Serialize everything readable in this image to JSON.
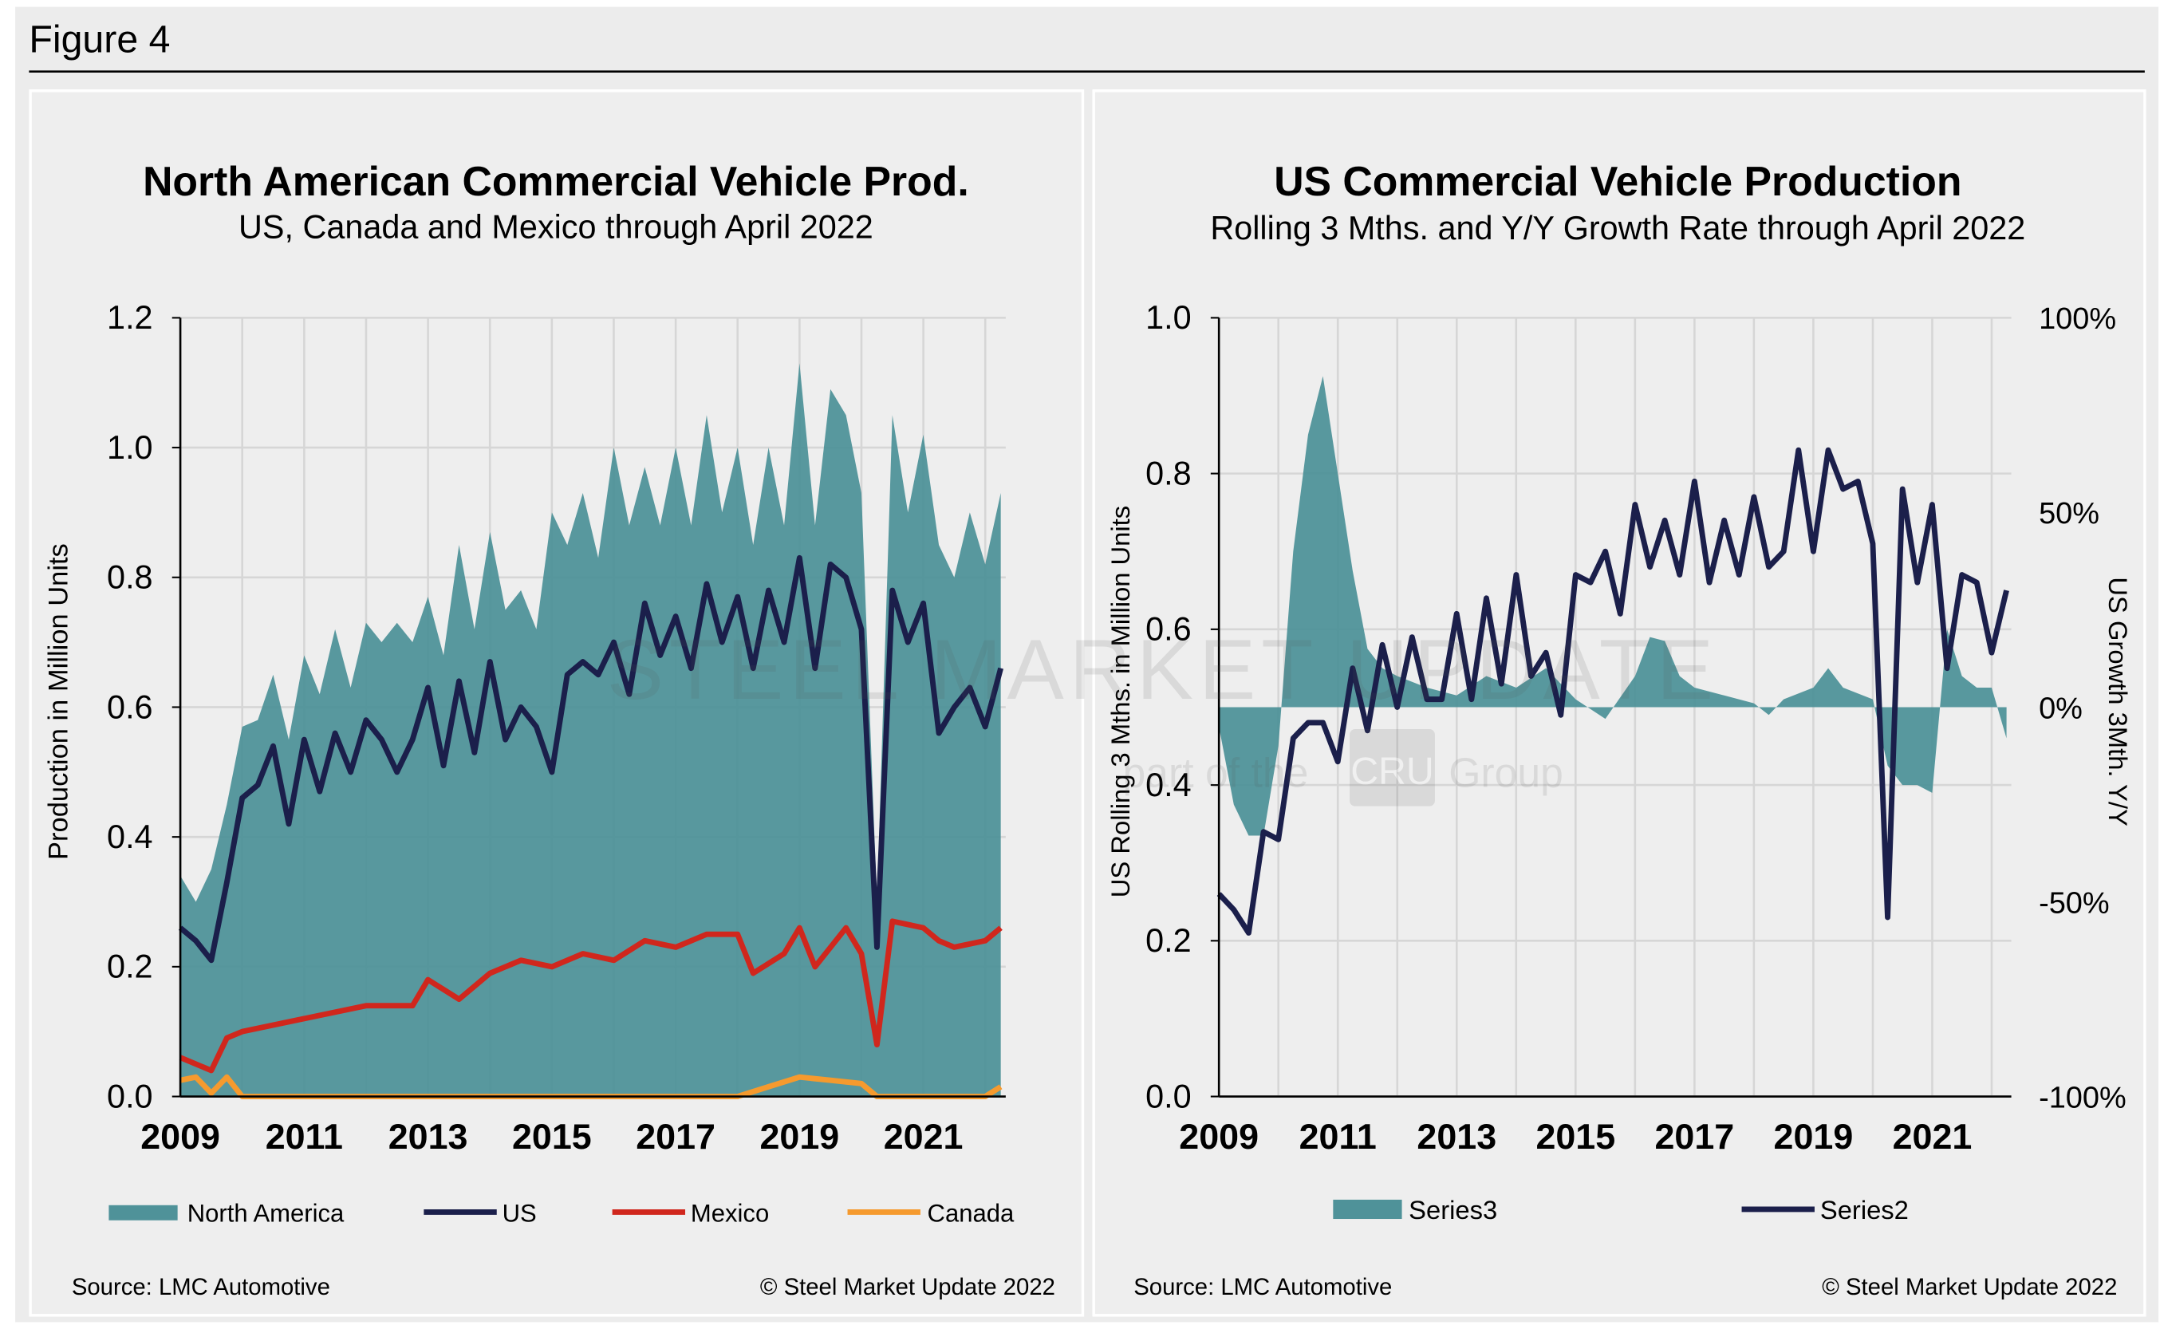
{
  "figure_label": "Figure 4",
  "watermark": {
    "line1": "STEEL MARKET UPDATE",
    "line2": "part of the",
    "badge": "CRU",
    "line3": "Group"
  },
  "chart_data": [
    {
      "type": "area+line",
      "title": "North American Commercial Vehicle Prod.",
      "subtitle": "US, Canada and Mexico through April 2022",
      "ylabel": "Production in Million Units",
      "xlabel": "",
      "ylim": [
        0,
        1.2
      ],
      "xlim": [
        2009,
        2022.33
      ],
      "yticks": [
        "0.0",
        "0.2",
        "0.4",
        "0.6",
        "0.8",
        "1.0",
        "1.2"
      ],
      "xticks": [
        "2009",
        "2011",
        "2013",
        "2015",
        "2017",
        "2019",
        "2021"
      ],
      "grid": true,
      "legend_position": "bottom",
      "source": "Source: LMC Automotive",
      "copyright": "© Steel Market Update 2022",
      "series": [
        {
          "name": "North America",
          "kind": "area",
          "color": "#4f9299",
          "x": [
            2009,
            2009.25,
            2009.5,
            2009.75,
            2010,
            2010.25,
            2010.5,
            2010.75,
            2011,
            2011.25,
            2011.5,
            2011.75,
            2012,
            2012.25,
            2012.5,
            2012.75,
            2013,
            2013.25,
            2013.5,
            2013.75,
            2014,
            2014.25,
            2014.5,
            2014.75,
            2015,
            2015.25,
            2015.5,
            2015.75,
            2016,
            2016.25,
            2016.5,
            2016.75,
            2017,
            2017.25,
            2017.5,
            2017.75,
            2018,
            2018.25,
            2018.5,
            2018.75,
            2019,
            2019.25,
            2019.5,
            2019.75,
            2020,
            2020.25,
            2020.5,
            2020.75,
            2021,
            2021.25,
            2021.5,
            2021.75,
            2022,
            2022.25
          ],
          "y": [
            0.34,
            0.3,
            0.35,
            0.45,
            0.57,
            0.58,
            0.65,
            0.55,
            0.68,
            0.62,
            0.72,
            0.63,
            0.73,
            0.7,
            0.73,
            0.7,
            0.77,
            0.68,
            0.85,
            0.72,
            0.87,
            0.75,
            0.78,
            0.72,
            0.9,
            0.85,
            0.93,
            0.83,
            1.0,
            0.88,
            0.97,
            0.88,
            1.0,
            0.88,
            1.05,
            0.9,
            1.0,
            0.85,
            1.0,
            0.88,
            1.13,
            0.88,
            1.09,
            1.05,
            0.93,
            0.3,
            1.05,
            0.9,
            1.02,
            0.85,
            0.8,
            0.9,
            0.82,
            0.93
          ]
        },
        {
          "name": "US",
          "kind": "line",
          "color": "#1b1f4b",
          "x": [
            2009,
            2009.25,
            2009.5,
            2009.75,
            2010,
            2010.25,
            2010.5,
            2010.75,
            2011,
            2011.25,
            2011.5,
            2011.75,
            2012,
            2012.25,
            2012.5,
            2012.75,
            2013,
            2013.25,
            2013.5,
            2013.75,
            2014,
            2014.25,
            2014.5,
            2014.75,
            2015,
            2015.25,
            2015.5,
            2015.75,
            2016,
            2016.25,
            2016.5,
            2016.75,
            2017,
            2017.25,
            2017.5,
            2017.75,
            2018,
            2018.25,
            2018.5,
            2018.75,
            2019,
            2019.25,
            2019.5,
            2019.75,
            2020,
            2020.25,
            2020.5,
            2020.75,
            2021,
            2021.25,
            2021.5,
            2021.75,
            2022,
            2022.25
          ],
          "y": [
            0.26,
            0.24,
            0.21,
            0.33,
            0.46,
            0.48,
            0.54,
            0.42,
            0.55,
            0.47,
            0.56,
            0.5,
            0.58,
            0.55,
            0.5,
            0.55,
            0.63,
            0.51,
            0.64,
            0.53,
            0.67,
            0.55,
            0.6,
            0.57,
            0.5,
            0.65,
            0.67,
            0.65,
            0.7,
            0.62,
            0.76,
            0.68,
            0.74,
            0.66,
            0.79,
            0.7,
            0.77,
            0.66,
            0.78,
            0.7,
            0.83,
            0.66,
            0.82,
            0.8,
            0.72,
            0.23,
            0.78,
            0.7,
            0.76,
            0.56,
            0.6,
            0.63,
            0.57,
            0.66
          ]
        },
        {
          "name": "Mexico",
          "kind": "line",
          "color": "#d0271d",
          "x": [
            2009,
            2009.5,
            2009.75,
            2010,
            2011,
            2012,
            2012.75,
            2013,
            2013.5,
            2014,
            2014.5,
            2015,
            2015.5,
            2016,
            2016.5,
            2017,
            2017.5,
            2018,
            2018.25,
            2018.75,
            2019,
            2019.25,
            2019.75,
            2020,
            2020.25,
            2020.5,
            2021,
            2021.25,
            2021.5,
            2022,
            2022.25
          ],
          "y": [
            0.06,
            0.04,
            0.09,
            0.1,
            0.12,
            0.14,
            0.14,
            0.18,
            0.15,
            0.19,
            0.21,
            0.2,
            0.22,
            0.21,
            0.24,
            0.23,
            0.25,
            0.25,
            0.19,
            0.22,
            0.26,
            0.2,
            0.26,
            0.22,
            0.08,
            0.27,
            0.26,
            0.24,
            0.23,
            0.24,
            0.26
          ]
        },
        {
          "name": "Canada",
          "kind": "line",
          "color": "#f59a2e",
          "x": [
            2009,
            2009.25,
            2009.5,
            2009.75,
            2010,
            2018,
            2018.5,
            2019,
            2019.5,
            2020,
            2020.25,
            2022,
            2022.25
          ],
          "y": [
            0.025,
            0.03,
            0.005,
            0.03,
            0.0,
            0.0,
            0.015,
            0.03,
            0.025,
            0.02,
            0.0,
            0.0,
            0.015
          ]
        }
      ]
    },
    {
      "type": "area+line",
      "title": "US Commercial Vehicle Production",
      "subtitle": "Rolling 3 Mths. and Y/Y Growth Rate through April 2022",
      "ylabel": "US Rolling 3 Mths. in Million Units",
      "y2label": "US Growth 3Mth. Y/Y",
      "ylim": [
        0,
        1.0
      ],
      "y2lim": [
        -100,
        100
      ],
      "xlim": [
        2009,
        2022.33
      ],
      "yticks": [
        "0.0",
        "0.2",
        "0.4",
        "0.6",
        "0.8",
        "1.0"
      ],
      "y2ticks": [
        "-100%",
        "-50%",
        "0%",
        "50%",
        "100%"
      ],
      "xticks": [
        "2009",
        "2011",
        "2013",
        "2015",
        "2017",
        "2019",
        "2021"
      ],
      "grid": true,
      "legend_position": "bottom",
      "source": "Source: LMC Automotive",
      "copyright": "© Steel Market Update 2022",
      "series": [
        {
          "name": "Series3",
          "kind": "area",
          "axis": "right",
          "color": "#4f9299",
          "x": [
            2009,
            2009.25,
            2009.5,
            2009.75,
            2010,
            2010.25,
            2010.5,
            2010.75,
            2011,
            2011.25,
            2011.5,
            2011.75,
            2012,
            2012.5,
            2013,
            2013.5,
            2014,
            2014.5,
            2015,
            2015.5,
            2016,
            2016.25,
            2016.5,
            2016.75,
            2017,
            2017.5,
            2018,
            2018.25,
            2018.5,
            2019,
            2019.25,
            2019.5,
            2020,
            2020.25,
            2020.5,
            2020.75,
            2021,
            2021.25,
            2021.5,
            2021.75,
            2022,
            2022.25
          ],
          "y": [
            -5,
            -25,
            -33,
            -33,
            -10,
            40,
            70,
            85,
            60,
            35,
            15,
            10,
            8,
            5,
            3,
            8,
            5,
            10,
            2,
            -3,
            8,
            18,
            17,
            8,
            5,
            3,
            1,
            -2,
            2,
            5,
            10,
            5,
            2,
            -15,
            -20,
            -20,
            -22,
            20,
            8,
            5,
            5,
            -8
          ]
        },
        {
          "name": "Series2",
          "kind": "line",
          "axis": "left",
          "color": "#1b1f4b",
          "x": [
            2009,
            2009.25,
            2009.5,
            2009.75,
            2010,
            2010.25,
            2010.5,
            2010.75,
            2011,
            2011.25,
            2011.5,
            2011.75,
            2012,
            2012.25,
            2012.5,
            2012.75,
            2013,
            2013.25,
            2013.5,
            2013.75,
            2014,
            2014.25,
            2014.5,
            2014.75,
            2015,
            2015.25,
            2015.5,
            2015.75,
            2016,
            2016.25,
            2016.5,
            2016.75,
            2017,
            2017.25,
            2017.5,
            2017.75,
            2018,
            2018.25,
            2018.5,
            2018.75,
            2019,
            2019.25,
            2019.5,
            2019.75,
            2020,
            2020.25,
            2020.5,
            2020.75,
            2021,
            2021.25,
            2021.5,
            2021.75,
            2022,
            2022.25
          ],
          "y": [
            0.26,
            0.24,
            0.21,
            0.34,
            0.33,
            0.46,
            0.48,
            0.48,
            0.43,
            0.55,
            0.47,
            0.58,
            0.5,
            0.59,
            0.51,
            0.51,
            0.62,
            0.51,
            0.64,
            0.53,
            0.67,
            0.54,
            0.57,
            0.49,
            0.67,
            0.66,
            0.7,
            0.62,
            0.76,
            0.68,
            0.74,
            0.67,
            0.79,
            0.66,
            0.74,
            0.67,
            0.77,
            0.68,
            0.7,
            0.83,
            0.7,
            0.83,
            0.78,
            0.79,
            0.71,
            0.23,
            0.78,
            0.66,
            0.76,
            0.55,
            0.67,
            0.66,
            0.57,
            0.65
          ]
        }
      ]
    }
  ]
}
